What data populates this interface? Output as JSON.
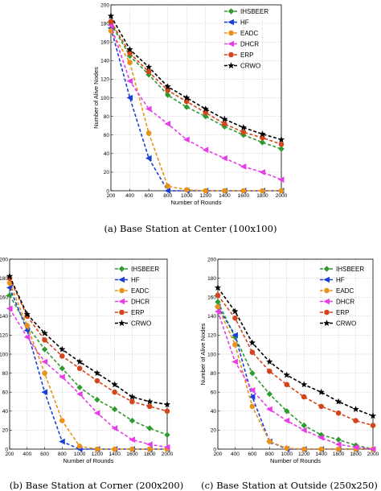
{
  "colors": {
    "IHSBEER": "#2e9a2e",
    "HF": "#1a3fd6",
    "EADC": "#e8921a",
    "DHCR": "#e83ee8",
    "ERP": "#d2461e",
    "CRWO": "#000000"
  },
  "chart_data": [
    {
      "type": "line",
      "caption": "(a) Base Station at Center (100x100)",
      "xlabel": "Number of Rounds",
      "ylabel": "Number of Alive Nodes",
      "xlim": [
        200,
        2000
      ],
      "ylim": [
        0,
        200
      ],
      "xticks": [
        200,
        400,
        600,
        800,
        1000,
        1200,
        1400,
        1600,
        1800,
        2000
      ],
      "yticks": [
        0,
        20,
        40,
        60,
        80,
        100,
        120,
        140,
        160,
        180,
        200
      ],
      "grid": true,
      "legend_position": "top-right",
      "x": [
        200,
        400,
        600,
        800,
        1000,
        1200,
        1400,
        1600,
        1800,
        2000
      ],
      "series": [
        {
          "name": "IHSBEER",
          "marker": "diamond",
          "values": [
            180,
            145,
            125,
            103,
            90,
            80,
            69,
            60,
            52,
            45
          ]
        },
        {
          "name": "HF",
          "marker": "triangle-left",
          "values": [
            175,
            100,
            35,
            0,
            0,
            0,
            0,
            0,
            0,
            0
          ]
        },
        {
          "name": "EADC",
          "marker": "circle",
          "values": [
            172,
            138,
            62,
            5,
            1,
            0,
            0,
            0,
            0,
            0
          ]
        },
        {
          "name": "DHCR",
          "marker": "triangle-left",
          "values": [
            178,
            118,
            88,
            72,
            55,
            44,
            35,
            26,
            20,
            12
          ]
        },
        {
          "name": "ERP",
          "marker": "circle",
          "values": [
            182,
            148,
            128,
            108,
            96,
            84,
            72,
            63,
            57,
            50
          ]
        },
        {
          "name": "CRWO",
          "marker": "star",
          "values": [
            188,
            152,
            133,
            112,
            100,
            88,
            77,
            68,
            61,
            55
          ]
        }
      ]
    },
    {
      "type": "line",
      "caption": "(b) Base Station at Corner (200x200)",
      "xlabel": "Number of Rounds",
      "ylabel": "Number of Alive Nodes",
      "xlim": [
        200,
        2000
      ],
      "ylim": [
        0,
        200
      ],
      "xticks": [
        200,
        400,
        600,
        800,
        1000,
        1200,
        1400,
        1600,
        1800,
        2000
      ],
      "yticks": [
        0,
        20,
        40,
        60,
        80,
        100,
        120,
        140,
        160,
        180,
        200
      ],
      "grid": true,
      "legend_position": "top-right",
      "x": [
        200,
        400,
        600,
        800,
        1000,
        1200,
        1400,
        1600,
        1800,
        2000
      ],
      "series": [
        {
          "name": "IHSBEER",
          "marker": "diamond",
          "values": [
            162,
            130,
            105,
            85,
            65,
            52,
            42,
            30,
            22,
            15
          ]
        },
        {
          "name": "HF",
          "marker": "triangle-left",
          "values": [
            170,
            125,
            60,
            8,
            0,
            0,
            0,
            0,
            0,
            0
          ]
        },
        {
          "name": "EADC",
          "marker": "circle",
          "values": [
            175,
            130,
            80,
            30,
            3,
            0,
            0,
            0,
            0,
            0
          ]
        },
        {
          "name": "DHCR",
          "marker": "triangle-left",
          "values": [
            148,
            118,
            92,
            76,
            58,
            38,
            22,
            10,
            5,
            2
          ]
        },
        {
          "name": "ERP",
          "marker": "circle",
          "values": [
            180,
            140,
            115,
            98,
            85,
            72,
            60,
            50,
            45,
            40
          ]
        },
        {
          "name": "CRWO",
          "marker": "star",
          "values": [
            182,
            142,
            122,
            105,
            92,
            80,
            68,
            55,
            50,
            47
          ]
        }
      ]
    },
    {
      "type": "line",
      "caption": "(c) Base Station at Outside (250x250)",
      "xlabel": "Number of Rounds",
      "ylabel": "Number of Alive Nodes",
      "xlim": [
        200,
        2000
      ],
      "ylim": [
        0,
        200
      ],
      "xticks": [
        200,
        400,
        600,
        800,
        1000,
        1200,
        1400,
        1600,
        1800,
        2000
      ],
      "yticks": [
        0,
        20,
        40,
        60,
        80,
        100,
        120,
        140,
        160,
        180,
        200
      ],
      "grid": true,
      "legend_position": "top-right",
      "x": [
        200,
        400,
        600,
        800,
        1000,
        1200,
        1400,
        1600,
        1800,
        2000
      ],
      "series": [
        {
          "name": "IHSBEER",
          "marker": "diamond",
          "values": [
            155,
            118,
            80,
            58,
            40,
            25,
            15,
            10,
            4,
            0
          ]
        },
        {
          "name": "HF",
          "marker": "triangle-left",
          "values": [
            150,
            120,
            55,
            8,
            0,
            0,
            0,
            0,
            0,
            0
          ]
        },
        {
          "name": "EADC",
          "marker": "circle",
          "values": [
            150,
            110,
            45,
            8,
            1,
            0,
            0,
            0,
            0,
            0
          ]
        },
        {
          "name": "DHCR",
          "marker": "triangle-left",
          "values": [
            145,
            92,
            62,
            42,
            30,
            20,
            12,
            5,
            2,
            0
          ]
        },
        {
          "name": "ERP",
          "marker": "circle",
          "values": [
            162,
            138,
            102,
            82,
            68,
            55,
            45,
            38,
            30,
            25
          ]
        },
        {
          "name": "CRWO",
          "marker": "star",
          "values": [
            170,
            145,
            112,
            92,
            78,
            68,
            60,
            50,
            42,
            35
          ]
        }
      ]
    }
  ]
}
